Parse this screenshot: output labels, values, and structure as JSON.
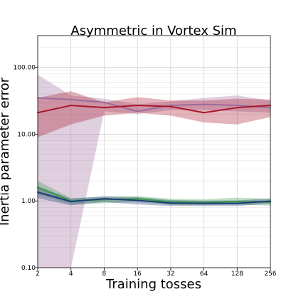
{
  "chart_data": {
    "type": "line",
    "title": "Asymmetric in Vortex Sim",
    "xlabel": "Training tosses",
    "ylabel": "Inertia parameter error",
    "x": [
      2,
      4,
      8,
      16,
      32,
      64,
      128,
      256
    ],
    "x_scale": "log2",
    "y_scale": "log10",
    "ylim": [
      0.1,
      300
    ],
    "x_tick_labels": [
      "2",
      "4",
      "8",
      "16",
      "32",
      "64",
      "128",
      "256"
    ],
    "y_tick_labels": [
      "0.10",
      "1.00",
      "10.00",
      "100.00"
    ],
    "y_ticks": [
      0.1,
      1,
      10,
      100
    ],
    "grid": true,
    "legend": "none",
    "series": [
      {
        "color": "#9b6b9b",
        "values": [
          35,
          33,
          30,
          22,
          27,
          28,
          27,
          25
        ],
        "lower": [
          0.1,
          0.1,
          22,
          20,
          23,
          23,
          22,
          21
        ],
        "upper": [
          78,
          38,
          34,
          28,
          31,
          35,
          38,
          32
        ]
      },
      {
        "color": "#a8172b",
        "values": [
          21,
          27,
          25,
          27,
          26,
          21,
          25,
          27
        ],
        "lower": [
          9,
          14,
          19,
          21,
          19,
          15,
          14,
          18
        ],
        "upper": [
          35,
          44,
          30,
          36,
          32,
          32,
          34,
          33
        ]
      },
      {
        "color": "#3a9a4a",
        "values": [
          1.6,
          1.0,
          1.05,
          1.08,
          0.97,
          0.95,
          0.98,
          0.96
        ],
        "lower": [
          1.25,
          0.9,
          0.93,
          0.96,
          0.87,
          0.86,
          0.88,
          0.85
        ],
        "upper": [
          2.0,
          1.1,
          1.15,
          1.18,
          1.08,
          1.06,
          1.12,
          1.08
        ]
      },
      {
        "color": "#1f3a7a",
        "values": [
          1.35,
          0.98,
          1.08,
          1.02,
          0.93,
          0.92,
          0.92,
          0.99
        ],
        "lower": [
          1.1,
          0.86,
          0.96,
          0.89,
          0.84,
          0.84,
          0.84,
          0.91
        ],
        "upper": [
          1.65,
          1.08,
          1.18,
          1.14,
          1.03,
          1.01,
          1.02,
          1.09
        ]
      }
    ]
  }
}
